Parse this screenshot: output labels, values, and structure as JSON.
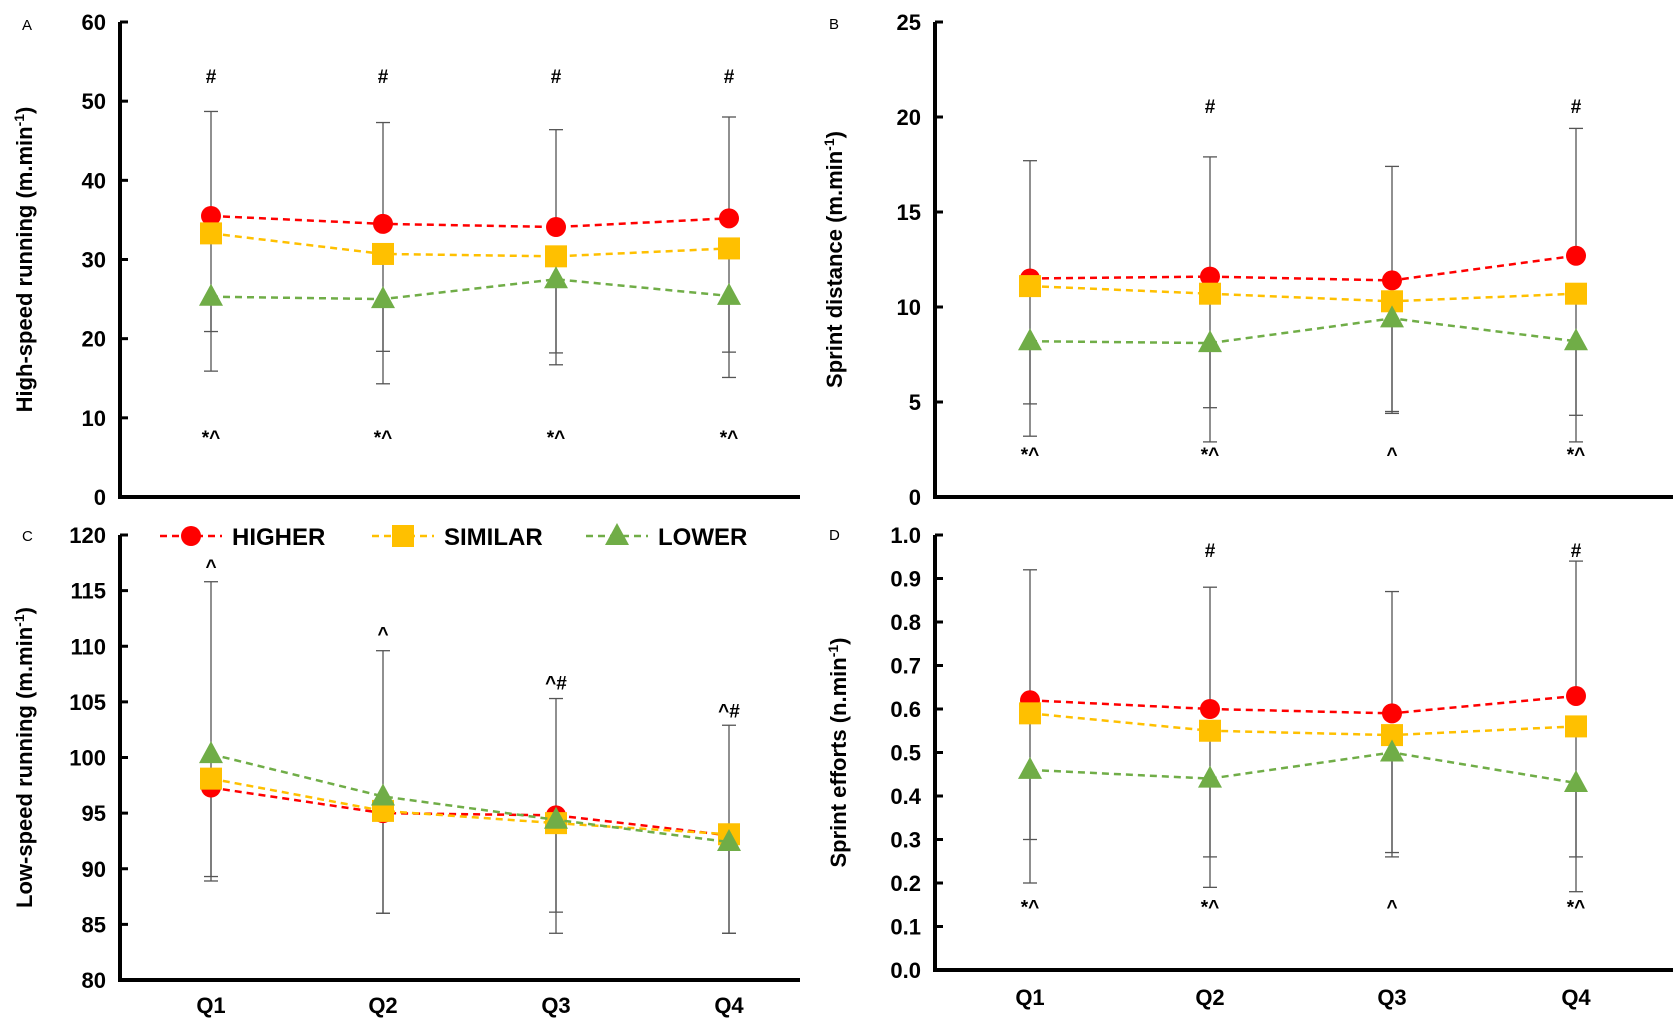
{
  "chart_data": [
    {
      "panel": "A",
      "type": "line",
      "categories": [
        "Q1",
        "Q2",
        "Q3",
        "Q4"
      ],
      "ylabel": "High-speed running (m.min",
      "ylabel_sup": "-1",
      "ylabel_close": ")",
      "ylim": [
        0,
        60
      ],
      "yticks": [
        "0",
        "10",
        "20",
        "30",
        "40",
        "50",
        "60"
      ],
      "series": [
        {
          "name": "HIGHER",
          "color": "#ff0000",
          "marker": "circle",
          "values": [
            35.5,
            34.5,
            34.1,
            35.2
          ],
          "err_hi": [
            48.7,
            47.3,
            46.4,
            48.0
          ]
        },
        {
          "name": "SIMILAR",
          "color": "#ffc000",
          "marker": "square",
          "values": [
            33.3,
            30.7,
            30.4,
            31.4
          ],
          "err_lo": [
            20.9,
            18.4,
            18.2,
            18.3
          ]
        },
        {
          "name": "LOWER",
          "color": "#70ad47",
          "marker": "triangle",
          "values": [
            25.3,
            25.0,
            27.5,
            25.4
          ],
          "err_lo": [
            15.9,
            14.3,
            16.7,
            15.1
          ]
        }
      ],
      "annotations": [
        {
          "cat": "Q1",
          "text": "#",
          "y": 52.3
        },
        {
          "cat": "Q2",
          "text": "#",
          "y": 52.3
        },
        {
          "cat": "Q3",
          "text": "#",
          "y": 52.3
        },
        {
          "cat": "Q4",
          "text": "#",
          "y": 52.3
        },
        {
          "cat": "Q1",
          "text": "*^",
          "y": 6.7
        },
        {
          "cat": "Q2",
          "text": "*^",
          "y": 6.7
        },
        {
          "cat": "Q3",
          "text": "*^",
          "y": 6.7
        },
        {
          "cat": "Q4",
          "text": "*^",
          "y": 6.7
        }
      ]
    },
    {
      "panel": "B",
      "type": "line",
      "categories": [
        "Q1",
        "Q2",
        "Q3",
        "Q4"
      ],
      "ylabel": "Sprint distance (m.min",
      "ylabel_sup": "-1",
      "ylabel_close": ")",
      "ylim": [
        0,
        25
      ],
      "yticks": [
        "0",
        "5",
        "10",
        "15",
        "20",
        "25"
      ],
      "series": [
        {
          "name": "HIGHER",
          "color": "#ff0000",
          "marker": "circle",
          "values": [
            11.5,
            11.6,
            11.4,
            12.7
          ],
          "err_hi": [
            17.7,
            17.9,
            17.4,
            19.4
          ]
        },
        {
          "name": "SIMILAR",
          "color": "#ffc000",
          "marker": "square",
          "values": [
            11.1,
            10.7,
            10.3,
            10.7
          ],
          "err_lo": [
            4.9,
            4.7,
            4.5,
            4.3
          ]
        },
        {
          "name": "LOWER",
          "color": "#70ad47",
          "marker": "triangle",
          "values": [
            8.2,
            8.1,
            9.4,
            8.2
          ],
          "err_lo": [
            3.2,
            2.9,
            4.4,
            2.9
          ]
        }
      ],
      "annotations": [
        {
          "cat": "Q2",
          "text": "#",
          "y": 20.2
        },
        {
          "cat": "Q4",
          "text": "#",
          "y": 20.2
        },
        {
          "cat": "Q1",
          "text": "*^",
          "y": 1.9
        },
        {
          "cat": "Q2",
          "text": "*^",
          "y": 1.9
        },
        {
          "cat": "Q3",
          "text": "^",
          "y": 1.9
        },
        {
          "cat": "Q4",
          "text": "*^",
          "y": 1.9
        }
      ]
    },
    {
      "panel": "C",
      "type": "line",
      "categories": [
        "Q1",
        "Q2",
        "Q3",
        "Q4"
      ],
      "ylabel": "Low-speed running (m.min",
      "ylabel_sup": "-1",
      "ylabel_close": ")",
      "ylim": [
        80,
        120
      ],
      "yticks": [
        "80",
        "85",
        "90",
        "95",
        "100",
        "105",
        "110",
        "115",
        "120"
      ],
      "series": [
        {
          "name": "HIGHER",
          "color": "#ff0000",
          "marker": "circle",
          "values": [
            97.3,
            95.0,
            94.8,
            93.0
          ],
          "err_lo": [
            89.3,
            86.0,
            86.1,
            84.2
          ]
        },
        {
          "name": "SIMILAR",
          "color": "#ffc000",
          "marker": "square",
          "values": [
            98.1,
            95.2,
            94.1,
            93.1
          ]
        },
        {
          "name": "LOWER",
          "color": "#70ad47",
          "marker": "triangle",
          "values": [
            100.3,
            96.5,
            94.4,
            92.4
          ],
          "err_lo": [
            88.9,
            86.0,
            84.2,
            84.2
          ],
          "err_hi": [
            115.8,
            109.6,
            105.3,
            102.9
          ]
        }
      ],
      "annotations": [
        {
          "cat": "Q1",
          "text": "^",
          "y": 116.6
        },
        {
          "cat": "Q2",
          "text": "^",
          "y": 110.5
        },
        {
          "cat": "Q3",
          "text": "^#",
          "y": 106.1
        },
        {
          "cat": "Q4",
          "text": "^#",
          "y": 103.6
        }
      ]
    },
    {
      "panel": "D",
      "type": "line",
      "categories": [
        "Q1",
        "Q2",
        "Q3",
        "Q4"
      ],
      "ylabel": "Sprint efforts (n.min",
      "ylabel_sup": "-1",
      "ylabel_close": ")",
      "ylim": [
        0,
        1
      ],
      "yticks": [
        "0.0",
        "0.1",
        "0.2",
        "0.3",
        "0.4",
        "0.5",
        "0.6",
        "0.7",
        "0.8",
        "0.9",
        "1.0"
      ],
      "series": [
        {
          "name": "HIGHER",
          "color": "#ff0000",
          "marker": "circle",
          "values": [
            0.62,
            0.6,
            0.59,
            0.63
          ],
          "err_hi": [
            0.92,
            0.88,
            0.87,
            0.94
          ]
        },
        {
          "name": "SIMILAR",
          "color": "#ffc000",
          "marker": "square",
          "values": [
            0.59,
            0.55,
            0.54,
            0.56
          ],
          "err_lo": [
            0.3,
            0.26,
            0.27,
            0.26
          ]
        },
        {
          "name": "LOWER",
          "color": "#70ad47",
          "marker": "triangle",
          "values": [
            0.46,
            0.44,
            0.5,
            0.43
          ],
          "err_lo": [
            0.2,
            0.19,
            0.26,
            0.18
          ]
        }
      ],
      "annotations": [
        {
          "cat": "Q2",
          "text": "#",
          "y": 0.95
        },
        {
          "cat": "Q4",
          "text": "#",
          "y": 0.95
        },
        {
          "cat": "Q1",
          "text": "*^",
          "y": 0.13
        },
        {
          "cat": "Q2",
          "text": "*^",
          "y": 0.13
        },
        {
          "cat": "Q3",
          "text": "^",
          "y": 0.13
        },
        {
          "cat": "Q4",
          "text": "*^",
          "y": 0.13
        }
      ]
    }
  ],
  "legend": {
    "items": [
      {
        "name": "HIGHER",
        "color": "#ff0000",
        "marker": "circle"
      },
      {
        "name": "SIMILAR",
        "color": "#ffc000",
        "marker": "square"
      },
      {
        "name": "LOWER",
        "color": "#70ad47",
        "marker": "triangle"
      }
    ]
  }
}
